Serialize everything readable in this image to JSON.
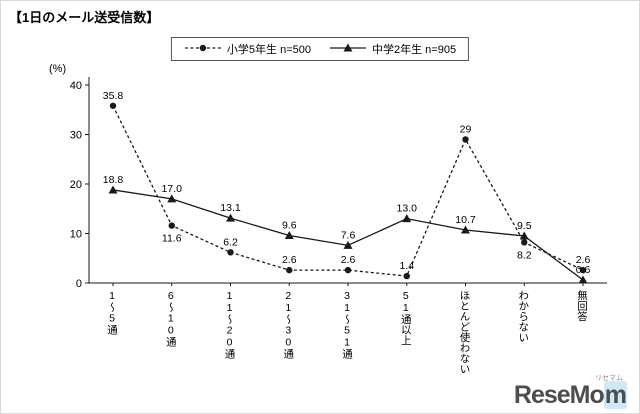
{
  "title": "【1日のメール送受信数】",
  "y_unit_label": "(%)",
  "legend": [
    {
      "label": "小学5年生 n=500"
    },
    {
      "label": "中学2年生 n=905"
    }
  ],
  "chart_data": {
    "type": "line",
    "title": "1日のメール送受信数",
    "xlabel": "",
    "ylabel": "(%)",
    "ylim": [
      0,
      40
    ],
    "yticks": [
      0,
      10,
      20,
      30,
      40
    ],
    "grid": false,
    "legend_position": "top",
    "categories": [
      "1〜5通",
      "6〜10通",
      "11〜20通",
      "21〜30通",
      "31〜51通",
      "51通以上",
      "ほとんど使わない",
      "わからない",
      "無回答"
    ],
    "series": [
      {
        "name": "小学5年生 n=500",
        "marker": "circle",
        "line": "dashed",
        "values": [
          35.8,
          11.6,
          6.2,
          2.6,
          2.6,
          1.4,
          29,
          8.2,
          2.6
        ],
        "labels": [
          "35.8",
          "11.6",
          "6.2",
          "2.6",
          "2.6",
          "1.4",
          "29",
          "8.2",
          "2.6"
        ],
        "label_pos": [
          "above",
          "below",
          "above",
          "above",
          "above",
          "above",
          "above",
          "below",
          "above"
        ]
      },
      {
        "name": "中学2年生 n=905",
        "marker": "triangle",
        "line": "solid",
        "values": [
          18.8,
          17.0,
          13.1,
          9.6,
          7.6,
          13.0,
          10.7,
          9.5,
          0.6
        ],
        "labels": [
          "18.8",
          "17.0",
          "13.1",
          "9.6",
          "7.6",
          "13.0",
          "10.7",
          "9.5",
          "0.6"
        ],
        "label_pos": [
          "above",
          "above",
          "above",
          "above",
          "above",
          "above",
          "above",
          "above",
          "above"
        ]
      }
    ],
    "line_color": "#1a1a1a"
  },
  "logo": {
    "kana": "リセマム",
    "text_main": "ReseMo",
    "text_accent": "m"
  }
}
